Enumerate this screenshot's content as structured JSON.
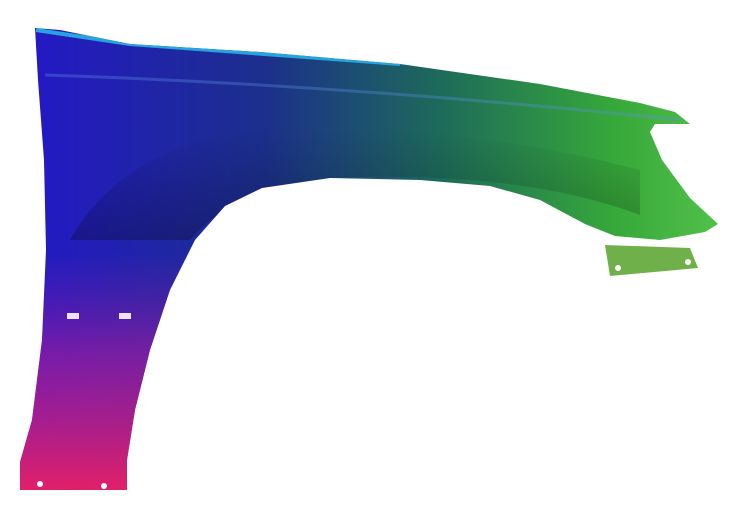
{
  "image": {
    "subject": "car-front-fender",
    "colors": {
      "background": "#ffffff",
      "left": "#2418c8",
      "middle": "#1c3a8a",
      "right": "#3fb33a",
      "bottom": "#e8206e",
      "top_edge": "#27a3e0"
    }
  }
}
